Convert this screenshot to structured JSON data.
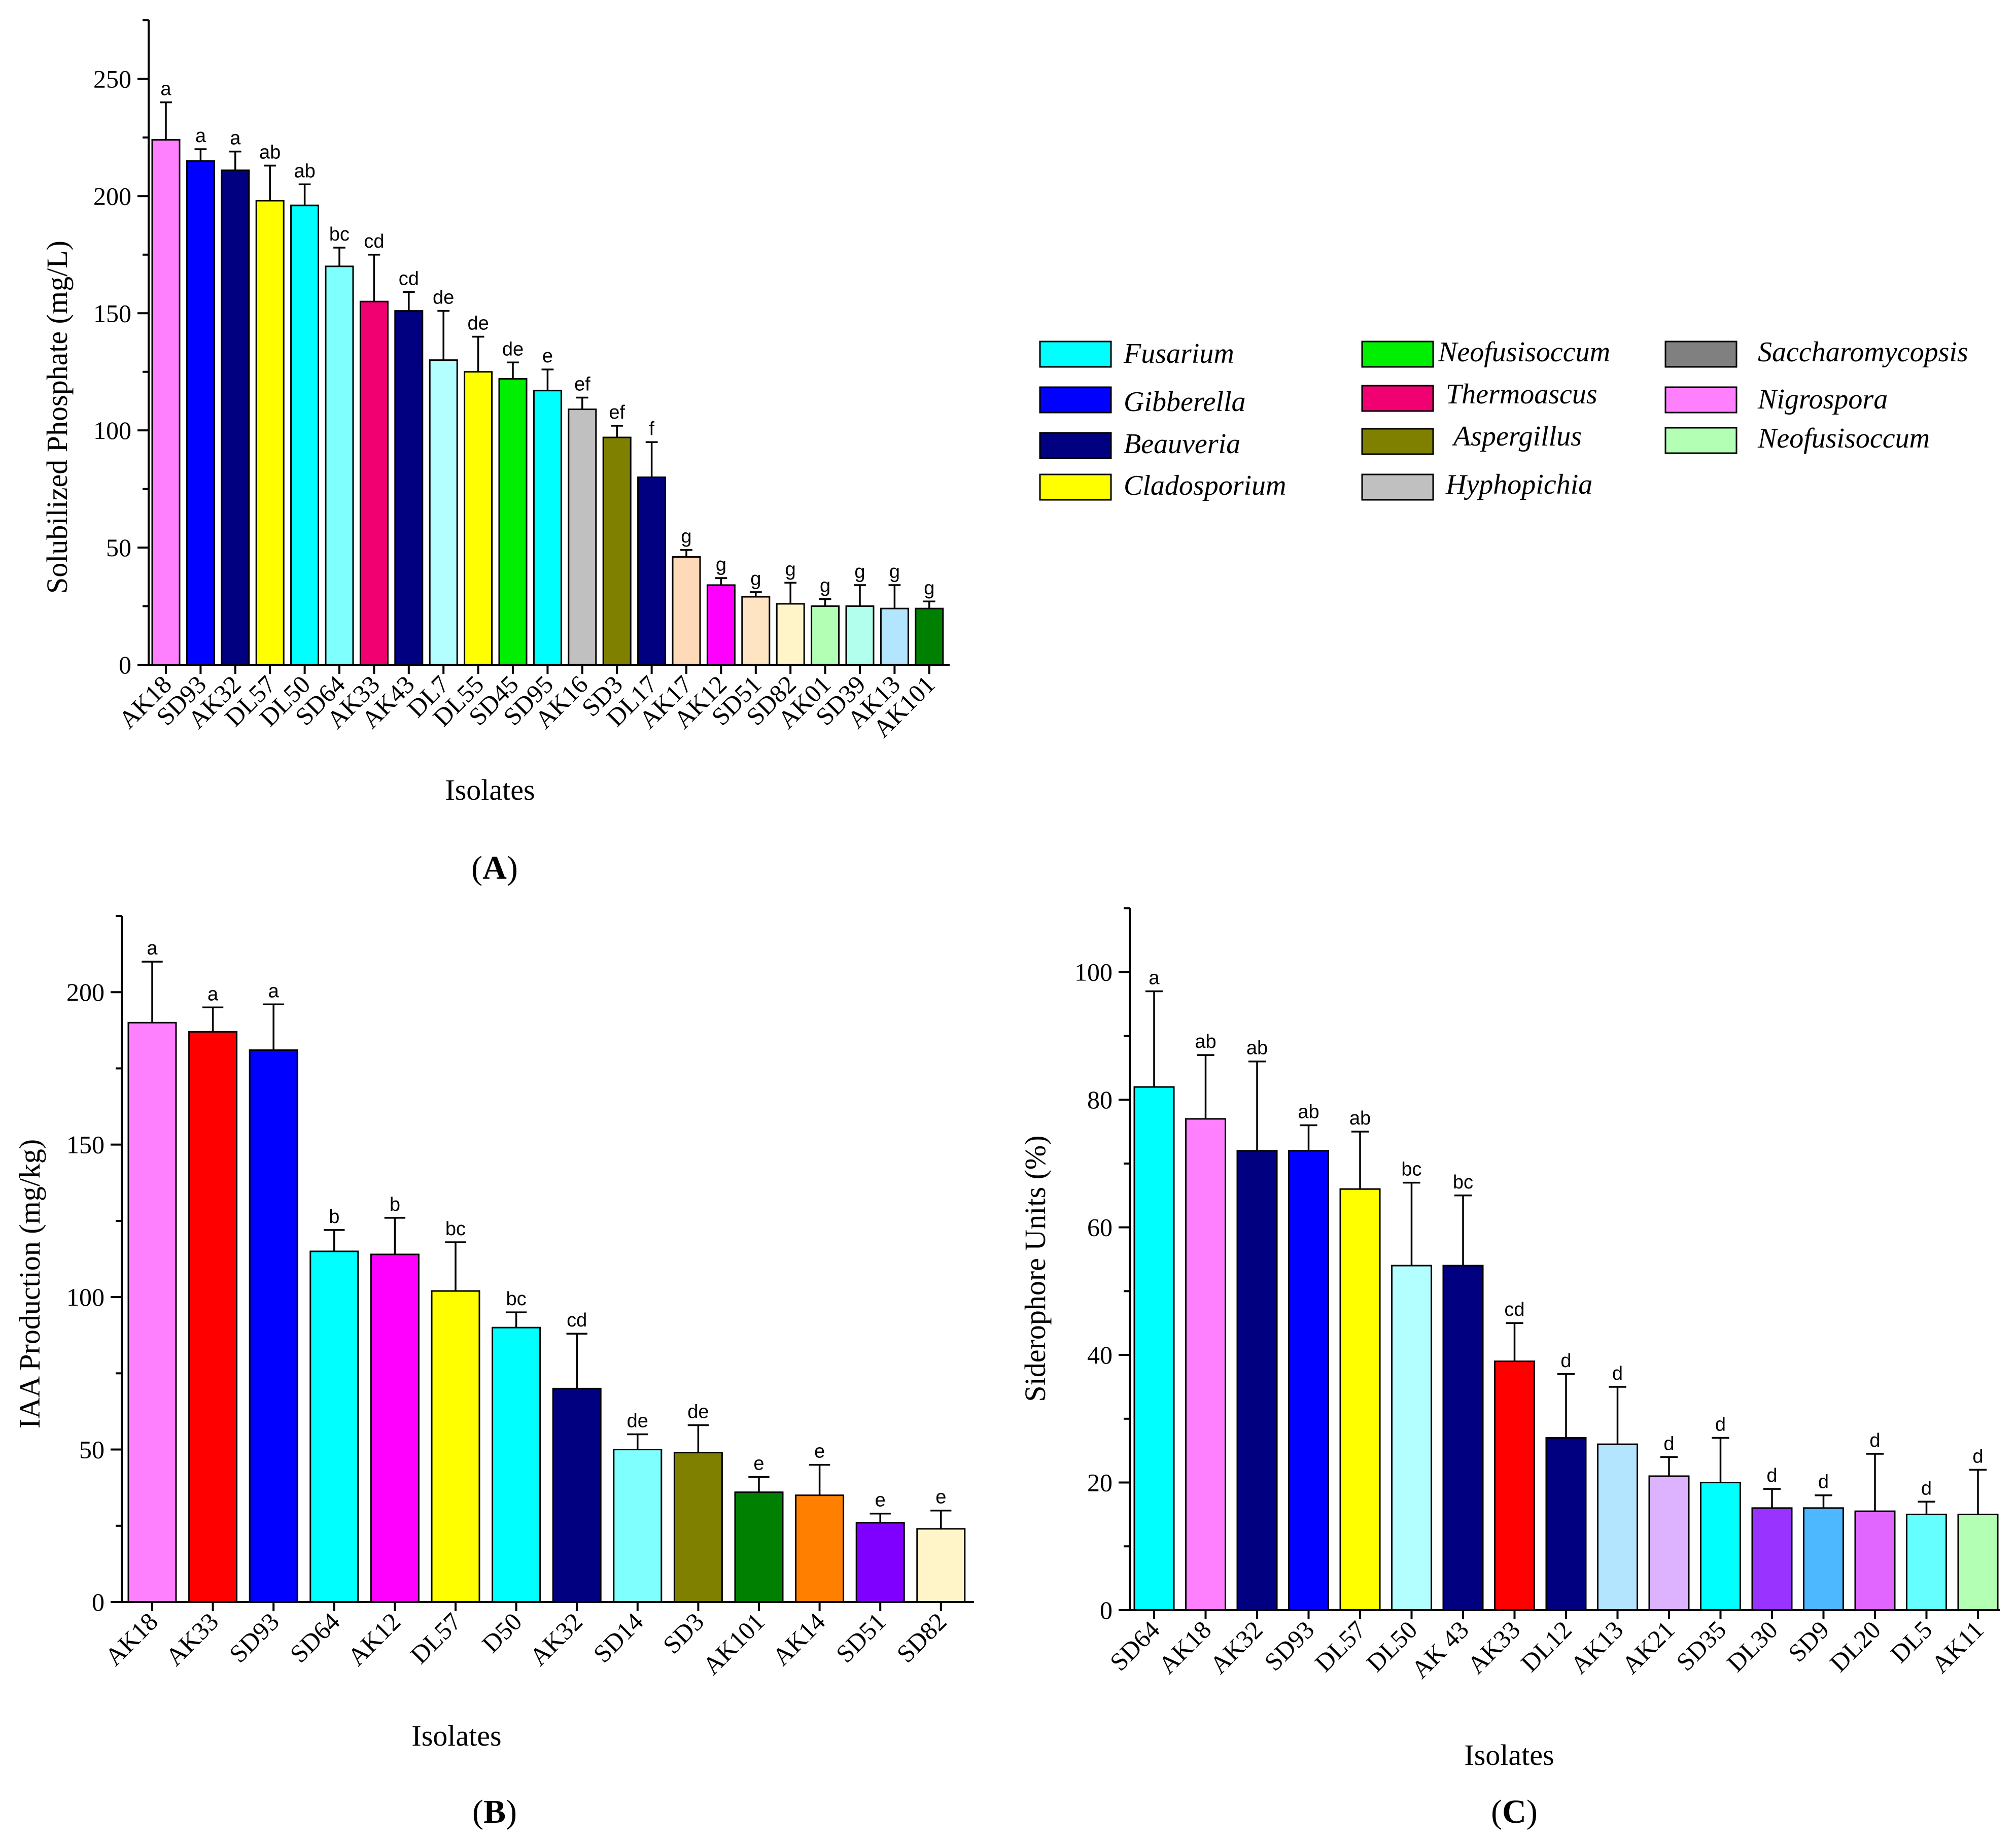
{
  "colors": {
    "Fusarium": "#00ffff",
    "Gibberella": "#0000ff",
    "Beauveria": "#000080",
    "Cladosporium": "#ffff00",
    "Neofusisoccum": "#00ee00",
    "Thermoascus": "#f00070",
    "Aspergillus": "#808000",
    "Hyphopichia": "#c0c0c0",
    "Saccharomycopsis": "#808080",
    "Nigrospora": "#ff80ff",
    "Neofusisoccum2": "#b3ffb3"
  },
  "legend": [
    {
      "label": "Fusarium",
      "color": "#00ffff"
    },
    {
      "label": "Gibberella",
      "color": "#0000ff"
    },
    {
      "label": "Beauveria",
      "color": "#000080"
    },
    {
      "label": "Cladosporium",
      "color": "#ffff00"
    },
    {
      "label": "Neofusisoccum",
      "color": "#00ee00"
    },
    {
      "label": "Thermoascus",
      "color": "#f00070"
    },
    {
      "label": "Aspergillus",
      "color": "#808000"
    },
    {
      "label": "Hyphopichia",
      "color": "#c0c0c0"
    },
    {
      "label": "Saccharomycopsis",
      "color": "#808080"
    },
    {
      "label": "Nigrospora",
      "color": "#ff80ff"
    },
    {
      "label": "Neofusisoccum",
      "color": "#b3ffb3"
    }
  ],
  "chart_data": [
    {
      "id": "A",
      "panel_label": "A",
      "type": "bar",
      "ylabel": "Solubilized Phosphate (mg/L)",
      "xlabel": "Isolates",
      "ylim": [
        0,
        275
      ],
      "yticks": [
        0,
        50,
        100,
        150,
        200,
        250
      ],
      "categories": [
        "AK18",
        "SD93",
        "AK32",
        "DL57",
        "DL50",
        "SD64",
        "AK33",
        "AK43",
        "DL7",
        "DL55",
        "SD45",
        "SD95",
        "AK16",
        "SD3",
        "DL17",
        "AK17",
        "AK12",
        "SD51",
        "SD82",
        "AK01",
        "SD39",
        "AK13",
        "AK101"
      ],
      "values": [
        224,
        215,
        211,
        198,
        196,
        170,
        155,
        151,
        130,
        125,
        122,
        117,
        109,
        97,
        80,
        46,
        34,
        29,
        26,
        25,
        25,
        24,
        24
      ],
      "errors": [
        16,
        5,
        8,
        15,
        9,
        8,
        20,
        8,
        21,
        15,
        7,
        9,
        5,
        5,
        15,
        3,
        3,
        2,
        9,
        3,
        9,
        10,
        3
      ],
      "letters": [
        "a",
        "a",
        "a",
        "ab",
        "ab",
        "bc",
        "cd",
        "cd",
        "de",
        "de",
        "de",
        "e",
        "ef",
        "ef",
        "f",
        "g",
        "g",
        "g",
        "g",
        "g",
        "g",
        "g",
        "g"
      ],
      "colors": [
        "#ff80ff",
        "#0000ff",
        "#000080",
        "#ffff00",
        "#00ffff",
        "#80ffff",
        "#f00070",
        "#000080",
        "#b3ffff",
        "#ffff00",
        "#00ee00",
        "#00ffff",
        "#c0c0c0",
        "#808000",
        "#000080",
        "#ffdab9",
        "#ff00ff",
        "#ffe4c4",
        "#fff5c8",
        "#b3ffb3",
        "#b3ffee",
        "#b3e5ff",
        "#008000"
      ]
    },
    {
      "id": "B",
      "panel_label": "B",
      "type": "bar",
      "ylabel": "IAA Production (mg/kg)",
      "xlabel": "Isolates",
      "ylim": [
        0,
        225
      ],
      "yticks": [
        0,
        50,
        100,
        150,
        200
      ],
      "categories": [
        "AK18",
        "AK33",
        "SD93",
        "SD64",
        "AK12",
        "DL57",
        "D50",
        "AK32",
        "SD14",
        "SD3",
        "AK101",
        "AK14",
        "SD51",
        "SD82"
      ],
      "values": [
        190,
        187,
        181,
        115,
        114,
        102,
        90,
        70,
        50,
        49,
        36,
        35,
        26,
        24
      ],
      "errors": [
        20,
        8,
        15,
        7,
        12,
        16,
        5,
        18,
        5,
        9,
        5,
        10,
        3,
        6
      ],
      "letters": [
        "a",
        "a",
        "a",
        "b",
        "b",
        "bc",
        "bc",
        "cd",
        "de",
        "de",
        "e",
        "e",
        "e",
        "e"
      ],
      "colors": [
        "#ff80ff",
        "#ff0000",
        "#0000ff",
        "#00ffff",
        "#ff00ff",
        "#ffff00",
        "#00ffff",
        "#000080",
        "#80ffff",
        "#808000",
        "#008000",
        "#ff8000",
        "#8000ff",
        "#fff5c8"
      ]
    },
    {
      "id": "C",
      "panel_label": "C",
      "type": "bar",
      "ylabel": "Siderophore Units (%)",
      "xlabel": "Isolates",
      "ylim": [
        0,
        110
      ],
      "yticks": [
        0,
        20,
        40,
        60,
        80,
        100
      ],
      "categories": [
        "SD64",
        "AK18",
        "AK32",
        "SD93",
        "DL57",
        "DL50",
        "AK 43",
        "AK33",
        "DL12",
        "AK13",
        "AK21",
        "SD35",
        "DL30",
        "SD9",
        "DL20",
        "DL5",
        "AK11"
      ],
      "values": [
        82,
        77,
        72,
        72,
        66,
        54,
        54,
        39,
        27,
        26,
        21,
        20,
        16,
        16,
        15.5,
        15,
        15
      ],
      "errors": [
        15,
        10,
        14,
        4,
        9,
        13,
        11,
        6,
        10,
        9,
        3,
        7,
        3,
        2,
        9,
        2,
        7
      ],
      "letters": [
        "a",
        "ab",
        "ab",
        "ab",
        "ab",
        "bc",
        "bc",
        "cd",
        "d",
        "d",
        "d",
        "d",
        "d",
        "d",
        "d",
        "d",
        "d"
      ],
      "colors": [
        "#00ffff",
        "#ff80ff",
        "#000080",
        "#0000ff",
        "#ffff00",
        "#b3ffff",
        "#000080",
        "#ff0000",
        "#000080",
        "#b3e5ff",
        "#ddb3ff",
        "#00ffff",
        "#9933ff",
        "#4db8ff",
        "#e066ff",
        "#66ffff",
        "#b3ffb3"
      ]
    }
  ]
}
